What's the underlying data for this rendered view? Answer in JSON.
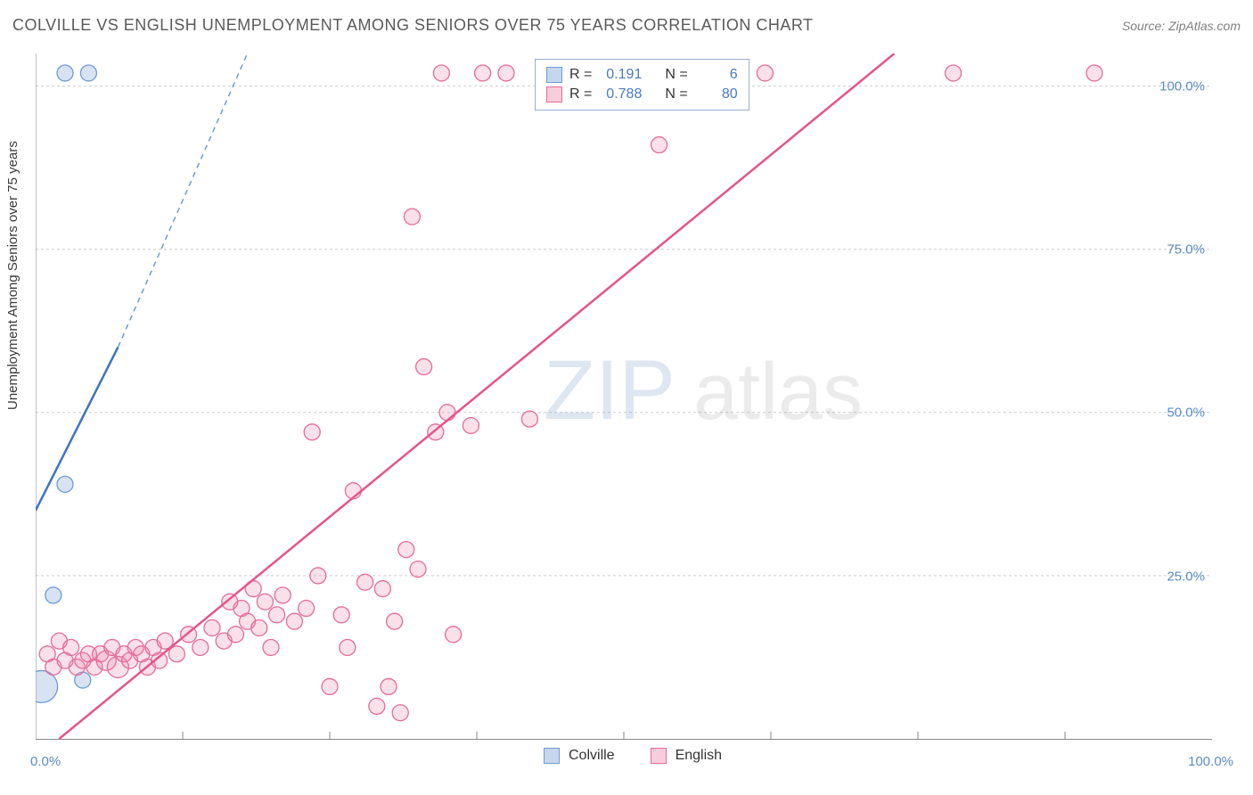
{
  "header": {
    "title": "COLVILLE VS ENGLISH UNEMPLOYMENT AMONG SENIORS OVER 75 YEARS CORRELATION CHART",
    "source": "Source: ZipAtlas.com"
  },
  "y_axis_label": "Unemployment Among Seniors over 75 years",
  "watermark": "ZIPatlas",
  "chart": {
    "type": "scatter",
    "xlim": [
      0,
      100
    ],
    "ylim": [
      0,
      105
    ],
    "x_ticks": [
      0,
      100
    ],
    "x_tick_labels": [
      "0.0%",
      "100.0%"
    ],
    "y_ticks": [
      25,
      50,
      75,
      100
    ],
    "y_tick_labels": [
      "25.0%",
      "50.0%",
      "75.0%",
      "100.0%"
    ],
    "x_minor_ticks": [
      12.5,
      25,
      37.5,
      50,
      62.5,
      75,
      87.5
    ],
    "background_color": "#ffffff",
    "grid_color": "#cccccc",
    "series": [
      {
        "name": "Colville",
        "marker_fill": "rgba(140,175,220,0.35)",
        "marker_stroke": "#6f9bd4",
        "line_color": "#3e74c4",
        "line_dash_color": "#6f9bd4",
        "r_value": "0.191",
        "n_value": "6",
        "points": [
          {
            "x": 0.5,
            "y": 8,
            "r": 18
          },
          {
            "x": 1.5,
            "y": 22,
            "r": 9
          },
          {
            "x": 2.5,
            "y": 102,
            "r": 9
          },
          {
            "x": 4.5,
            "y": 102,
            "r": 9
          },
          {
            "x": 2.5,
            "y": 39,
            "r": 9
          },
          {
            "x": 4.0,
            "y": 9,
            "r": 9
          }
        ],
        "trend": {
          "x1": 0,
          "y1": 35,
          "x2": 7,
          "y2": 60,
          "dash_x2": 18,
          "dash_y2": 105
        }
      },
      {
        "name": "English",
        "marker_fill": "rgba(235,130,165,0.25)",
        "marker_stroke": "#e66b9a",
        "line_color": "#e45589",
        "r_value": "0.788",
        "n_value": "80",
        "points": [
          {
            "x": 1,
            "y": 13,
            "r": 9
          },
          {
            "x": 1.5,
            "y": 11,
            "r": 9
          },
          {
            "x": 2,
            "y": 15,
            "r": 9
          },
          {
            "x": 2.5,
            "y": 12,
            "r": 9
          },
          {
            "x": 3,
            "y": 14,
            "r": 9
          },
          {
            "x": 3.5,
            "y": 11,
            "r": 9
          },
          {
            "x": 4,
            "y": 12,
            "r": 9
          },
          {
            "x": 4.5,
            "y": 13,
            "r": 9
          },
          {
            "x": 5,
            "y": 11,
            "r": 9
          },
          {
            "x": 5.5,
            "y": 13,
            "r": 9
          },
          {
            "x": 6,
            "y": 12,
            "r": 11
          },
          {
            "x": 6.5,
            "y": 14,
            "r": 9
          },
          {
            "x": 7,
            "y": 11,
            "r": 12
          },
          {
            "x": 7.5,
            "y": 13,
            "r": 9
          },
          {
            "x": 8,
            "y": 12,
            "r": 9
          },
          {
            "x": 8.5,
            "y": 14,
            "r": 9
          },
          {
            "x": 9,
            "y": 13,
            "r": 9
          },
          {
            "x": 9.5,
            "y": 11,
            "r": 9
          },
          {
            "x": 10,
            "y": 14,
            "r": 9
          },
          {
            "x": 10.5,
            "y": 12,
            "r": 9
          },
          {
            "x": 11,
            "y": 15,
            "r": 9
          },
          {
            "x": 12,
            "y": 13,
            "r": 9
          },
          {
            "x": 13,
            "y": 16,
            "r": 9
          },
          {
            "x": 14,
            "y": 14,
            "r": 9
          },
          {
            "x": 15,
            "y": 17,
            "r": 9
          },
          {
            "x": 16,
            "y": 15,
            "r": 9
          },
          {
            "x": 16.5,
            "y": 21,
            "r": 9
          },
          {
            "x": 17,
            "y": 16,
            "r": 9
          },
          {
            "x": 17.5,
            "y": 20,
            "r": 9
          },
          {
            "x": 18,
            "y": 18,
            "r": 9
          },
          {
            "x": 18.5,
            "y": 23,
            "r": 9
          },
          {
            "x": 19,
            "y": 17,
            "r": 9
          },
          {
            "x": 19.5,
            "y": 21,
            "r": 9
          },
          {
            "x": 20,
            "y": 14,
            "r": 9
          },
          {
            "x": 20.5,
            "y": 19,
            "r": 9
          },
          {
            "x": 21,
            "y": 22,
            "r": 9
          },
          {
            "x": 22,
            "y": 18,
            "r": 9
          },
          {
            "x": 23,
            "y": 20,
            "r": 9
          },
          {
            "x": 23.5,
            "y": 47,
            "r": 9
          },
          {
            "x": 24,
            "y": 25,
            "r": 9
          },
          {
            "x": 25,
            "y": 8,
            "r": 9
          },
          {
            "x": 26,
            "y": 19,
            "r": 9
          },
          {
            "x": 26.5,
            "y": 14,
            "r": 9
          },
          {
            "x": 27,
            "y": 38,
            "r": 9
          },
          {
            "x": 28,
            "y": 24,
            "r": 9
          },
          {
            "x": 29,
            "y": 5,
            "r": 9
          },
          {
            "x": 29.5,
            "y": 23,
            "r": 9
          },
          {
            "x": 30,
            "y": 8,
            "r": 9
          },
          {
            "x": 30.5,
            "y": 18,
            "r": 9
          },
          {
            "x": 31,
            "y": 4,
            "r": 9
          },
          {
            "x": 31.5,
            "y": 29,
            "r": 9
          },
          {
            "x": 32,
            "y": 80,
            "r": 9
          },
          {
            "x": 32.5,
            "y": 26,
            "r": 9
          },
          {
            "x": 33,
            "y": 57,
            "r": 9
          },
          {
            "x": 34,
            "y": 47,
            "r": 9
          },
          {
            "x": 34.5,
            "y": 102,
            "r": 9
          },
          {
            "x": 35,
            "y": 50,
            "r": 9
          },
          {
            "x": 35.5,
            "y": 16,
            "r": 9
          },
          {
            "x": 37,
            "y": 48,
            "r": 9
          },
          {
            "x": 38,
            "y": 102,
            "r": 9
          },
          {
            "x": 40,
            "y": 102,
            "r": 9
          },
          {
            "x": 42,
            "y": 49,
            "r": 9
          },
          {
            "x": 44,
            "y": 102,
            "r": 9
          },
          {
            "x": 50,
            "y": 102,
            "r": 9
          },
          {
            "x": 51,
            "y": 102,
            "r": 9
          },
          {
            "x": 53,
            "y": 91,
            "r": 9
          },
          {
            "x": 54.5,
            "y": 102,
            "r": 9
          },
          {
            "x": 62,
            "y": 102,
            "r": 9
          },
          {
            "x": 78,
            "y": 102,
            "r": 9
          },
          {
            "x": 90,
            "y": 102,
            "r": 9
          }
        ],
        "trend": {
          "x1": 2,
          "y1": 0,
          "x2": 73,
          "y2": 105
        }
      }
    ]
  },
  "stats_box": {
    "r_label": "R =",
    "n_label": "N ="
  },
  "legend": {
    "items": [
      {
        "label": "Colville",
        "fill": "rgba(140,175,220,0.5)",
        "stroke": "#6f9bd4"
      },
      {
        "label": "English",
        "fill": "rgba(235,130,165,0.4)",
        "stroke": "#e66b9a"
      }
    ]
  }
}
